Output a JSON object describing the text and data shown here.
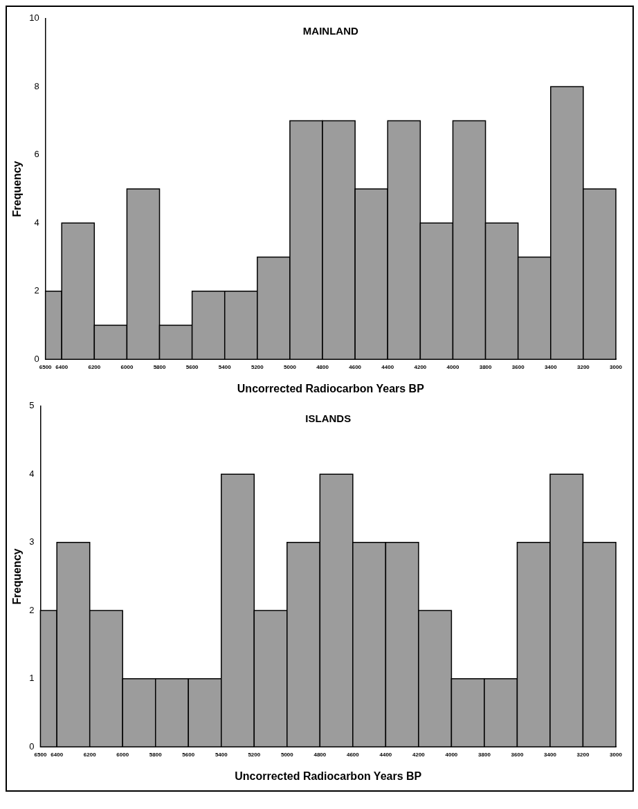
{
  "chart_data": [
    {
      "type": "histogram",
      "title": "MAINLAND",
      "xlabel": "Uncorrected Radiocarbon Years BP",
      "ylabel": "Frequency",
      "bins": [
        6500,
        6400,
        6200,
        6000,
        5800,
        5600,
        5400,
        5200,
        5000,
        4800,
        4600,
        4400,
        4200,
        4000,
        3800,
        3600,
        3400,
        3200,
        3000
      ],
      "values": [
        2,
        4,
        1,
        5,
        1,
        2,
        2,
        3,
        7,
        7,
        5,
        7,
        4,
        7,
        4,
        3,
        8,
        5
      ],
      "xlim": [
        6500,
        3000
      ],
      "xticks": [
        6500,
        6400,
        6200,
        6000,
        5800,
        5600,
        5400,
        5200,
        5000,
        4800,
        4600,
        4400,
        4200,
        4000,
        3800,
        3600,
        3400,
        3200,
        3000
      ],
      "color": "#9c9c9c",
      "ylim": [
        0,
        10
      ],
      "yticks": [
        0,
        2,
        4,
        6,
        8,
        10
      ],
      "grid": false
    },
    {
      "type": "histogram",
      "title": "ISLANDS",
      "xlabel": "Uncorrected Radiocarbon Years BP",
      "ylabel": "Frequency",
      "bins": [
        6500,
        6400,
        6200,
        6000,
        5800,
        5600,
        5400,
        5200,
        5000,
        4800,
        4600,
        4400,
        4200,
        4000,
        3800,
        3600,
        3400,
        3200,
        3000
      ],
      "values": [
        2,
        3,
        2,
        1,
        1,
        1,
        4,
        2,
        3,
        4,
        3,
        3,
        2,
        1,
        1,
        3,
        4,
        3
      ],
      "xlim": [
        6500,
        3000
      ],
      "xticks": [
        6500,
        6400,
        6200,
        6000,
        5800,
        5600,
        5400,
        5200,
        5000,
        4800,
        4600,
        4400,
        4200,
        4000,
        3800,
        3600,
        3400,
        3200,
        3000
      ],
      "color": "#9c9c9c",
      "ylim": [
        0,
        5
      ],
      "yticks": [
        0,
        1,
        2,
        3,
        4,
        5
      ],
      "grid": false
    }
  ]
}
